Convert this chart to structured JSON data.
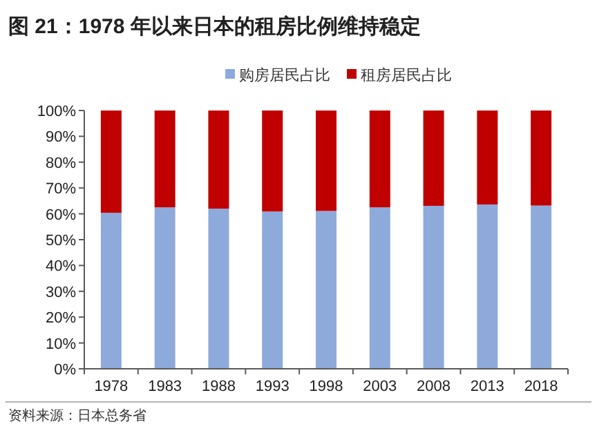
{
  "chart_data": {
    "type": "bar",
    "stacked": true,
    "title": "图 21：1978 年以来日本的租房比例维持稳定",
    "categories": [
      "1978",
      "1983",
      "1988",
      "1993",
      "1998",
      "2003",
      "2008",
      "2013",
      "2018"
    ],
    "series": [
      {
        "name": "购房居民占比",
        "color": "#8eaadb",
        "values": [
          60.4,
          62.5,
          62.0,
          60.9,
          61.1,
          62.5,
          63.1,
          63.6,
          63.2
        ]
      },
      {
        "name": "租房居民占比",
        "color": "#c00000",
        "values": [
          39.6,
          37.5,
          38.0,
          39.1,
          38.9,
          37.5,
          36.9,
          36.4,
          36.8
        ]
      }
    ],
    "ylim": [
      0,
      100
    ],
    "yticks": [
      {
        "value": 0,
        "label": "0%"
      },
      {
        "value": 10,
        "label": "10%"
      },
      {
        "value": 20,
        "label": "20%"
      },
      {
        "value": 30,
        "label": "30%"
      },
      {
        "value": 40,
        "label": "40%"
      },
      {
        "value": 50,
        "label": "50%"
      },
      {
        "value": 60,
        "label": "60%"
      },
      {
        "value": 70,
        "label": "70%"
      },
      {
        "value": 80,
        "label": "80%"
      },
      {
        "value": 90,
        "label": "90%"
      },
      {
        "value": 100,
        "label": "100%"
      }
    ],
    "legend": "top",
    "grid": false,
    "annotations": [
      "资料来源：日本总务省"
    ]
  }
}
